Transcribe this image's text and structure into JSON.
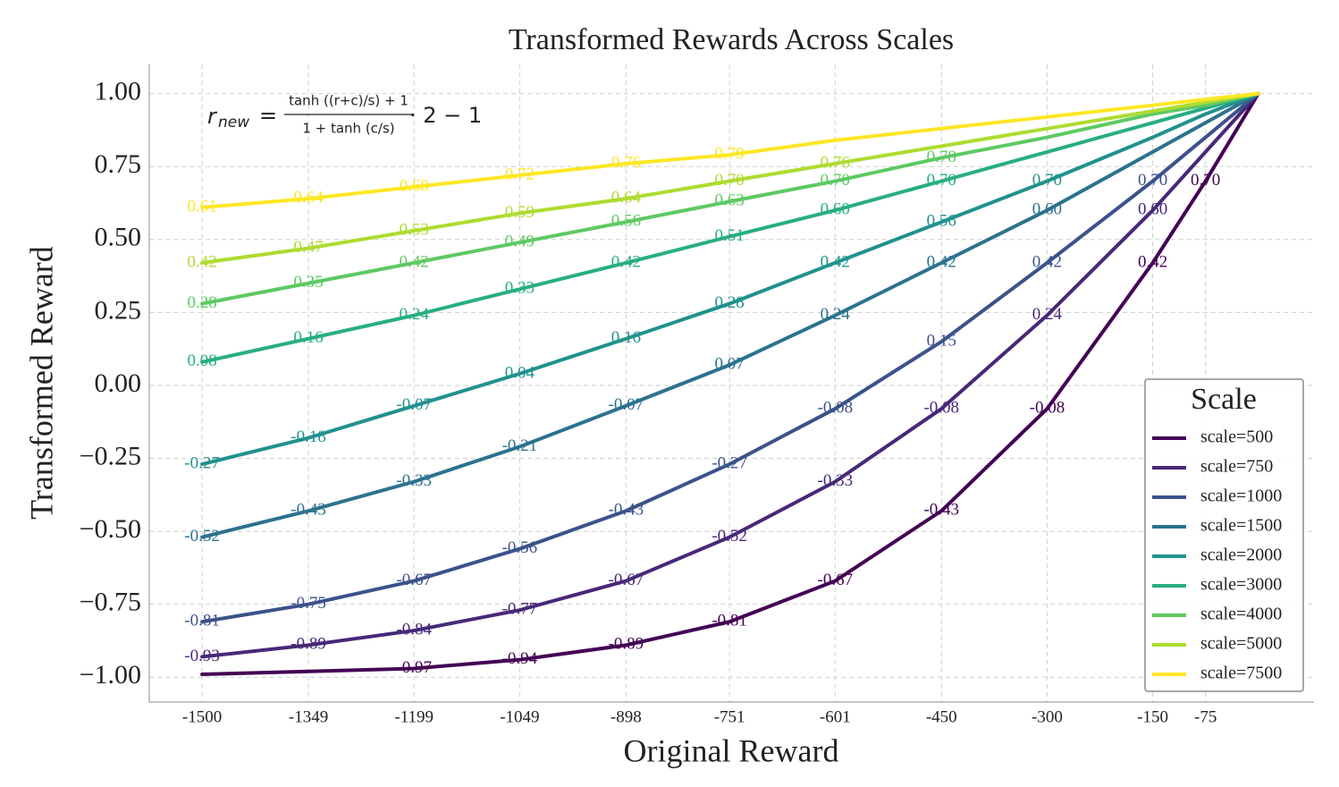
{
  "chart_data": {
    "type": "line",
    "title": "Transformed Rewards Across Scales",
    "x_label": "Original Reward",
    "y_label": "Transformed Reward",
    "formula": {
      "lhs": "r",
      "lhs_sub": "new",
      "eq": "=",
      "numerator": "tanh ((r+c)/s) + 1",
      "denominator": "1 + tanh (c/s)",
      "tail": "· 2 − 1"
    },
    "legend_title": "Scale",
    "legend_position": "lower right",
    "grid": true,
    "xlim": [
      -1575,
      79
    ],
    "ylim": [
      -1.085,
      1.1
    ],
    "xticks": [
      -1500,
      -1349,
      -1199,
      -1049,
      -898,
      -751,
      -601,
      -450,
      -300,
      -150,
      -75
    ],
    "yticks": [
      {
        "value": -1,
        "label": "−1.00"
      },
      {
        "value": -0.75,
        "label": "−0.75"
      },
      {
        "value": -0.5,
        "label": "−0.50"
      },
      {
        "value": -0.25,
        "label": "−0.25"
      },
      {
        "value": 0,
        "label": "0.00"
      },
      {
        "value": 0.25,
        "label": "0.25"
      },
      {
        "value": 0.5,
        "label": "0.50"
      },
      {
        "value": 0.75,
        "label": "0.75"
      },
      {
        "value": 1,
        "label": "1.00"
      }
    ],
    "x": [
      -1500,
      -1349,
      -1199,
      -1049,
      -898,
      -751,
      -601,
      -450,
      -300,
      -150,
      -75,
      0
    ],
    "series": [
      {
        "name": "scale=500",
        "color": "#440154",
        "values": [
          -0.99,
          -0.98,
          -0.97,
          -0.94,
          -0.89,
          -0.81,
          -0.67,
          -0.43,
          -0.08,
          0.42,
          0.7,
          1
        ],
        "value_labels": [
          null,
          null,
          "-0.97",
          "-0.94",
          "-0.89",
          "-0.81",
          "-0.67",
          "-0.43",
          "-0.08",
          "0.42",
          "0.70",
          null
        ]
      },
      {
        "name": "scale=750",
        "color": "#482878",
        "values": [
          -0.93,
          -0.89,
          -0.84,
          -0.77,
          -0.67,
          -0.52,
          -0.33,
          -0.08,
          0.24,
          0.6,
          0.8,
          1
        ],
        "value_labels": [
          "-0.93",
          "-0.89",
          "-0.84",
          "-0.77",
          "-0.67",
          "-0.52",
          "-0.33",
          "-0.08",
          "0.24",
          "0.60",
          null,
          null
        ]
      },
      {
        "name": "scale=1000",
        "color": "#3b528b",
        "values": [
          -0.81,
          -0.75,
          -0.67,
          -0.56,
          -0.43,
          -0.27,
          -0.08,
          0.15,
          0.42,
          0.7,
          0.85,
          1
        ],
        "value_labels": [
          "-0.81",
          "-0.75",
          "-0.67",
          "-0.56",
          "-0.43",
          "-0.27",
          "-0.08",
          "0.15",
          "0.42",
          "0.70",
          null,
          null
        ]
      },
      {
        "name": "scale=1500",
        "color": "#2c728e",
        "values": [
          -0.52,
          -0.43,
          -0.33,
          -0.21,
          -0.07,
          0.07,
          0.24,
          0.42,
          0.6,
          0.8,
          0.9,
          1
        ],
        "value_labels": [
          "-0.52",
          "-0.43",
          "-0.33",
          "-0.21",
          "-0.07",
          "0.07",
          "0.24",
          "0.42",
          "0.60",
          null,
          null,
          null
        ]
      },
      {
        "name": "scale=2000",
        "color": "#21918c",
        "values": [
          -0.27,
          -0.18,
          -0.07,
          0.04,
          0.16,
          0.28,
          0.42,
          0.56,
          0.7,
          0.85,
          0.93,
          1
        ],
        "value_labels": [
          "-0.27",
          "-0.18",
          "-0.07",
          "0.04",
          "0.16",
          "0.28",
          "0.42",
          "0.56",
          "0.70",
          null,
          null,
          null
        ]
      },
      {
        "name": "scale=3000",
        "color": "#28ae80",
        "values": [
          0.08,
          0.16,
          0.24,
          0.33,
          0.42,
          0.51,
          0.6,
          0.7,
          0.8,
          0.9,
          0.95,
          1
        ],
        "value_labels": [
          "0.08",
          "0.16",
          "0.24",
          "0.33",
          "0.42",
          "0.51",
          "0.60",
          "0.70",
          null,
          null,
          null,
          null
        ]
      },
      {
        "name": "scale=4000",
        "color": "#5ec962",
        "values": [
          0.28,
          0.35,
          0.42,
          0.49,
          0.56,
          0.63,
          0.7,
          0.78,
          0.85,
          0.93,
          0.96,
          1
        ],
        "value_labels": [
          "0.28",
          "0.35",
          "0.42",
          "0.49",
          "0.56",
          "0.63",
          "0.70",
          "0.78",
          null,
          null,
          null,
          null
        ]
      },
      {
        "name": "scale=5000",
        "color": "#addc30",
        "values": [
          0.42,
          0.47,
          0.53,
          0.59,
          0.64,
          0.7,
          0.76,
          0.82,
          0.88,
          0.94,
          0.97,
          1
        ],
        "value_labels": [
          "0.42",
          "0.47",
          "0.53",
          "0.59",
          "0.64",
          "0.70",
          "0.76",
          null,
          null,
          null,
          null,
          null
        ]
      },
      {
        "name": "scale=7500",
        "color": "#fde725",
        "values": [
          0.61,
          0.64,
          0.68,
          0.72,
          0.76,
          0.79,
          0.84,
          0.88,
          0.92,
          0.96,
          0.98,
          1
        ],
        "value_labels": [
          "0.61",
          "0.64",
          "0.68",
          "0.72",
          "0.76",
          "0.79",
          null,
          null,
          null,
          null,
          null,
          null
        ]
      }
    ]
  }
}
